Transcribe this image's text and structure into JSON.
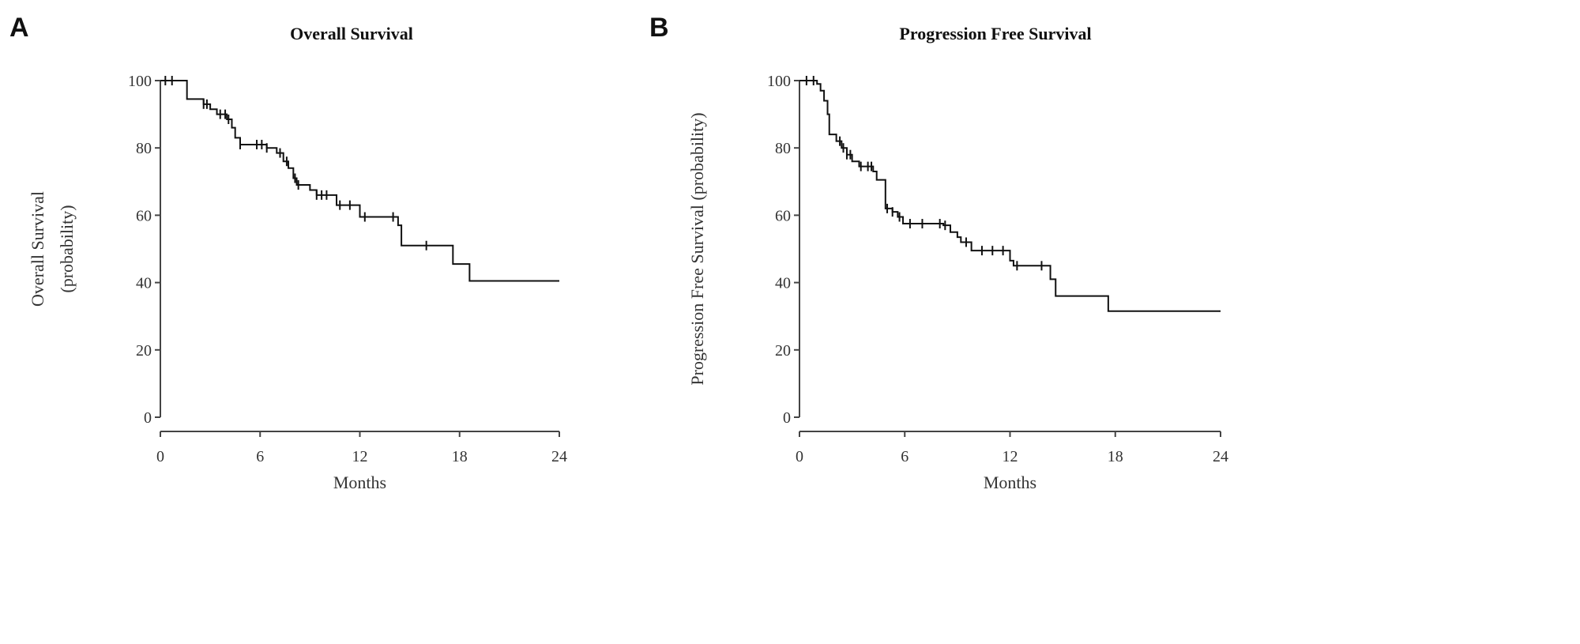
{
  "chart_data": [
    {
      "panel_label": "A",
      "type": "line",
      "subtype": "kaplan-meier step",
      "title": "Overall Survival",
      "xlabel": "Months",
      "ylabel_lines": [
        "Overall  Survival",
        "(probability)"
      ],
      "xlim": [
        0,
        24
      ],
      "ylim": [
        0,
        100
      ],
      "xticks": [
        "0",
        "6",
        "12",
        "18",
        "24"
      ],
      "yticks": [
        "0",
        "20",
        "40",
        "60",
        "80",
        "100"
      ],
      "grid": false,
      "color": "#111111",
      "steps": [
        [
          0,
          100
        ],
        [
          1.6,
          94.5
        ],
        [
          2.6,
          93
        ],
        [
          3.0,
          91.5
        ],
        [
          3.4,
          90
        ],
        [
          4.0,
          88.5
        ],
        [
          4.3,
          86
        ],
        [
          4.5,
          83
        ],
        [
          4.8,
          81
        ],
        [
          6.4,
          80
        ],
        [
          7.0,
          78.5
        ],
        [
          7.4,
          76
        ],
        [
          7.7,
          74
        ],
        [
          8.0,
          71
        ],
        [
          8.2,
          69
        ],
        [
          9.0,
          67.5
        ],
        [
          9.4,
          66
        ],
        [
          10.6,
          63
        ],
        [
          12.0,
          59.5
        ],
        [
          14.3,
          57
        ],
        [
          14.5,
          51
        ],
        [
          17.6,
          45.5
        ],
        [
          18.6,
          40.5
        ],
        [
          24,
          40.5
        ]
      ],
      "censored": [
        0.3,
        0.7,
        2.6,
        2.8,
        3.6,
        3.9,
        4.1,
        4.8,
        5.8,
        6.1,
        6.4,
        7.2,
        7.6,
        8.1,
        8.3,
        9.4,
        9.7,
        10.0,
        10.8,
        11.4,
        12.3,
        14.0,
        16.0
      ]
    },
    {
      "panel_label": "B",
      "type": "line",
      "subtype": "kaplan-meier step",
      "title": "Progression Free Survival",
      "xlabel": "Months",
      "ylabel_lines": [
        "Progression Free Survival  (probability)"
      ],
      "xlim": [
        0,
        24
      ],
      "ylim": [
        0,
        100
      ],
      "xticks": [
        "0",
        "6",
        "12",
        "18",
        "24"
      ],
      "yticks": [
        "0",
        "20",
        "40",
        "60",
        "80",
        "100"
      ],
      "grid": false,
      "color": "#111111",
      "steps": [
        [
          0,
          100
        ],
        [
          1.0,
          99
        ],
        [
          1.2,
          97
        ],
        [
          1.4,
          94
        ],
        [
          1.6,
          90
        ],
        [
          1.7,
          84
        ],
        [
          2.1,
          82
        ],
        [
          2.4,
          80
        ],
        [
          2.7,
          78
        ],
        [
          3.0,
          76
        ],
        [
          3.4,
          74.5
        ],
        [
          4.2,
          73
        ],
        [
          4.4,
          70.5
        ],
        [
          4.9,
          62
        ],
        [
          5.3,
          61
        ],
        [
          5.6,
          59.5
        ],
        [
          5.9,
          57.5
        ],
        [
          8.2,
          57
        ],
        [
          8.6,
          55
        ],
        [
          9.0,
          53.5
        ],
        [
          9.2,
          52
        ],
        [
          9.8,
          49.5
        ],
        [
          12.0,
          46.5
        ],
        [
          12.2,
          45
        ],
        [
          14.3,
          41
        ],
        [
          14.6,
          36
        ],
        [
          17.6,
          31.5
        ],
        [
          24,
          31.5
        ]
      ],
      "censored": [
        0.4,
        0.8,
        2.3,
        2.5,
        2.7,
        2.9,
        3.5,
        3.9,
        4.1,
        5.0,
        5.3,
        5.7,
        6.3,
        7.0,
        8.0,
        8.3,
        9.5,
        10.4,
        11.0,
        11.6,
        12.4,
        13.8
      ]
    }
  ]
}
